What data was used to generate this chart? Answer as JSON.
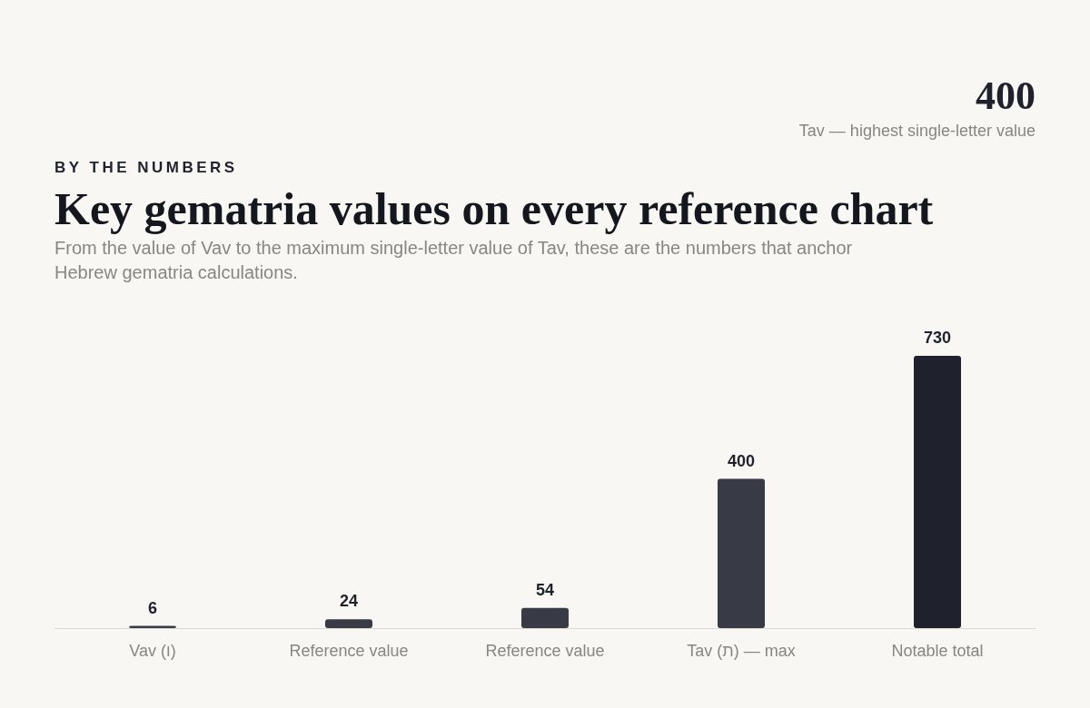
{
  "chart_data": {
    "type": "bar",
    "title": "Key gematria values on every reference chart",
    "subtitle": "From the value of Vav to the maximum single-letter value of Tav, these are the numbers that anchor Hebrew gematria calculations.",
    "annotations": [
      "400",
      "Tav — highest single-letter value",
      "BY THE NUMBERS"
    ],
    "categories": [
      "Vav (ו)",
      "Reference value",
      "Reference value",
      "Tav (ת) — max",
      "Notable total"
    ],
    "values": [
      6,
      24,
      54,
      400,
      730
    ],
    "colors": [
      "#383b45",
      "#383b45",
      "#383b45",
      "#383b45",
      "#1f222c"
    ],
    "data_labels": true
  }
}
